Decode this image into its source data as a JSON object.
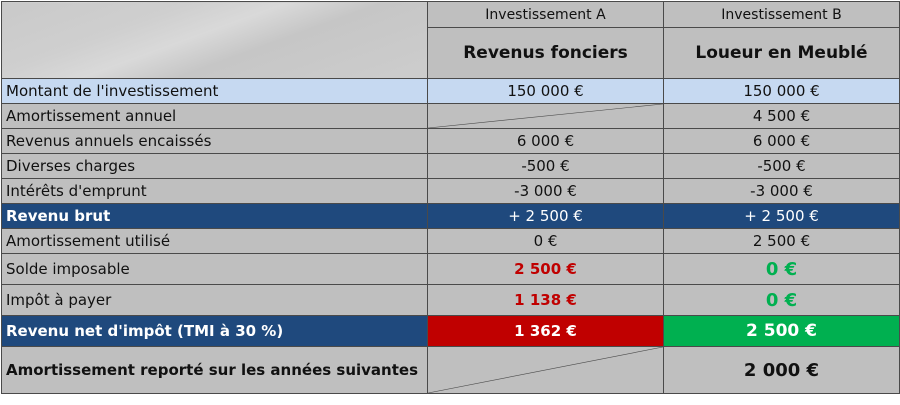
{
  "header": {
    "col_a": "Investissement A",
    "col_b": "Investissement B",
    "col_a_title": "Revenus fonciers",
    "col_b_title": "Loueur en Meublé"
  },
  "rows": [
    {
      "label": "Montant de l'investissement",
      "a": "150 000 €",
      "b": "150 000 €"
    },
    {
      "label": "Amortissement annuel",
      "a": "",
      "b": "4 500 €"
    },
    {
      "label": "Revenus annuels encaissés",
      "a": "6 000 €",
      "b": "6 000 €"
    },
    {
      "label": "Diverses charges",
      "a": "-500 €",
      "b": "-500 €"
    },
    {
      "label": "Intérêts d'emprunt",
      "a": "-3 000 €",
      "b": "-3 000 €"
    },
    {
      "label": "Revenu brut",
      "a": "+ 2 500 €",
      "b": "+ 2 500 €"
    },
    {
      "label": "Amortissement utilisé",
      "a": "0 €",
      "b": "2 500 €"
    },
    {
      "label": "Solde imposable",
      "a": "2 500 €",
      "b": "0 €"
    },
    {
      "label": "Impôt à payer",
      "a": "1 138 €",
      "b": "0 €"
    },
    {
      "label": "Revenu net d'impôt (TMI à 30 %)",
      "a": "1 362 €",
      "b": "2 500 €"
    },
    {
      "label": "Amortissement reporté sur les années suivantes",
      "a": "",
      "b": "2 000 €"
    }
  ],
  "colors": {
    "header_band": "#1f497d",
    "highlight_row": "#c6d9f1",
    "negative": "#c00000",
    "positive": "#00b050",
    "cell_bg": "#bfbfbf"
  }
}
